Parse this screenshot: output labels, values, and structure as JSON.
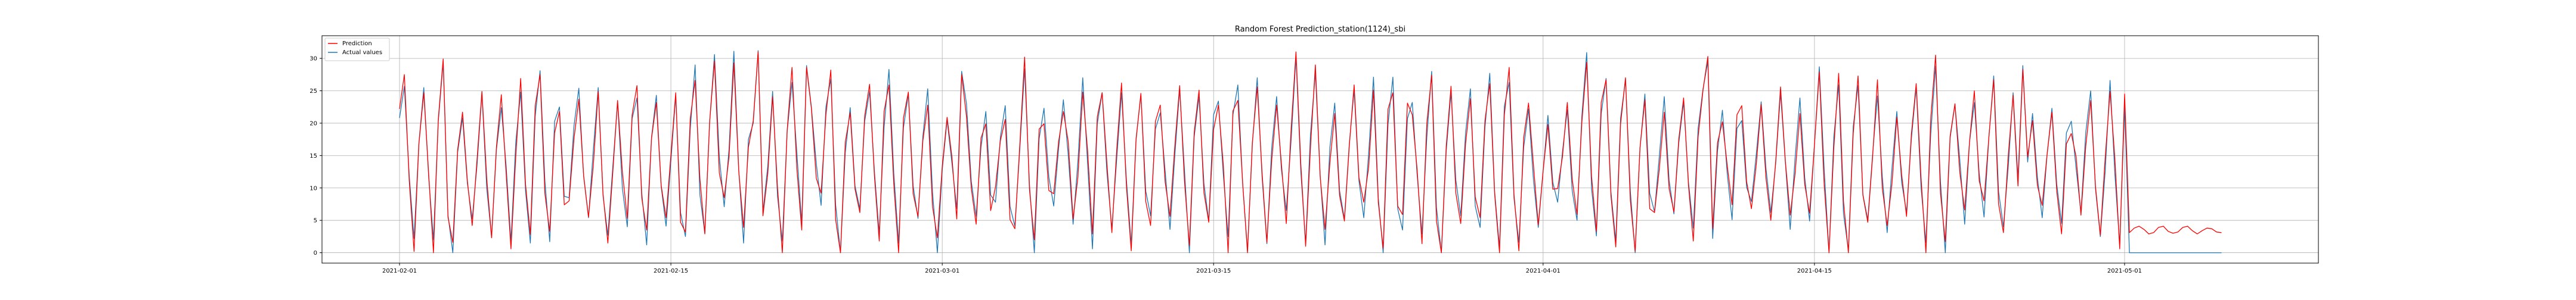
{
  "chart_data": {
    "type": "line",
    "title": "Random Forest Prediction_station(1124)_sbi",
    "xlabel": "",
    "ylabel": "",
    "x_range": [
      "2021-01-28",
      "2021-05-11"
    ],
    "ylim": [
      -1.6,
      33.5
    ],
    "y_ticks": [
      0,
      5,
      10,
      15,
      20,
      25,
      30
    ],
    "x_ticks": [
      "2021-02-01",
      "2021-02-15",
      "2021-03-01",
      "2021-03-15",
      "2021-04-01",
      "2021-04-15",
      "2021-05-01"
    ],
    "grid": true,
    "legend_position": "top-left",
    "series": [
      {
        "name": "Prediction",
        "color": "#ff0000",
        "values": []
      },
      {
        "name": "Actual values",
        "color": "#1f77b4",
        "values": []
      }
    ],
    "data_start": "2021-02-01",
    "data_end_actual": "2021-05-01",
    "data_end_prediction": "2021-05-06",
    "samples_per_day": 4,
    "prediction_tail_range": [
      3,
      4
    ]
  }
}
